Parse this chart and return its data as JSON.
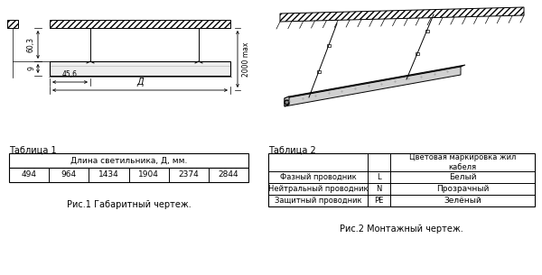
{
  "bg_color": "#ffffff",
  "fig_width": 6.0,
  "fig_height": 3.05,
  "table1_title": "Таблица 1",
  "table1_header": "Длина светильника, Д, мм.",
  "table1_values": [
    "494",
    "964",
    "1434",
    "1904",
    "2374",
    "2844"
  ],
  "table2_title": "Таблица 2",
  "table2_col_header": "Цветовая маркировка жил\nкабеля",
  "table2_rows": [
    [
      "Фазный проводник",
      "L",
      "Белый"
    ],
    [
      "Нейтральный проводник",
      "N",
      "Прозрачный"
    ],
    [
      "Защитный проводник",
      "PE",
      "Зелёный"
    ]
  ],
  "caption1": "Рис.1 Габаритный чертеж.",
  "caption2": "Рис.2 Монтажный чертеж.",
  "dim_60_3": "60,3",
  "dim_9": "9",
  "dim_45_6": "45,6",
  "dim_d": "Д",
  "dim_2000": "2000 max"
}
